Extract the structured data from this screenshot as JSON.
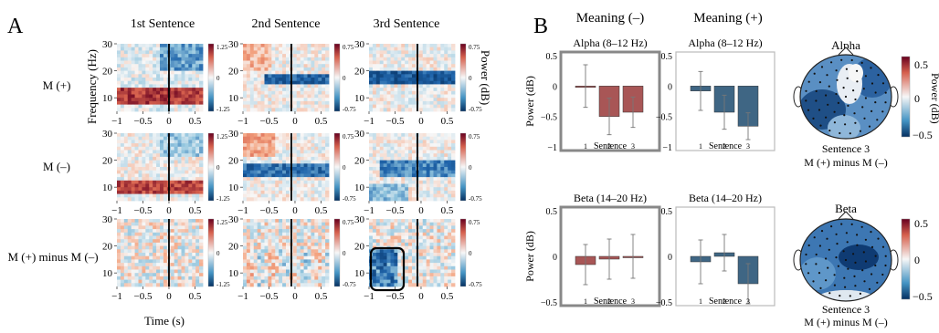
{
  "panel_a": {
    "letter": "A",
    "columns": [
      "1st Sentence",
      "2nd Sentence",
      "3rd Sentence"
    ],
    "rows": [
      "M (+)",
      "M (–)",
      "M (+) minus M (–)"
    ],
    "ylabel": "Frequency (Hz)",
    "xlabel": "Time (s)",
    "colorbar_label": "Power (dB)",
    "yticks": [
      "30",
      "20",
      "10"
    ],
    "xticks": [
      "−1",
      "−0.5",
      "0",
      "0.5"
    ],
    "colorbars": [
      {
        "max": "1.25",
        "mid": "0",
        "min": "-1.25"
      },
      {
        "max": "0.75",
        "mid": "0",
        "min": "-0.75"
      },
      {
        "max": "0.75",
        "mid": "0",
        "min": "-0.75"
      },
      {
        "max": "1.25",
        "mid": "0",
        "min": "-1.25"
      },
      {
        "max": "0.75",
        "mid": "0",
        "min": "-0.75"
      },
      {
        "max": "0.75",
        "mid": "0",
        "min": "-0.75"
      },
      {
        "max": "1.25",
        "mid": "0",
        "min": "-1.25"
      },
      {
        "max": "0.75",
        "mid": "0",
        "min": "-0.75"
      },
      {
        "max": "0.75",
        "mid": "0",
        "min": "-0.75"
      }
    ],
    "colors": {
      "pos": "#b2182b",
      "mid": "#f7f7f7",
      "neg": "#2166ac"
    }
  },
  "panel_b": {
    "letter": "B",
    "headers": [
      "Meaning (–)",
      "Meaning (+)"
    ],
    "topo_titles": [
      "Alpha",
      "Beta"
    ],
    "topo_caption_1": "Sentence 3",
    "topo_caption_2": "M (+) minus M (–)",
    "topo_colorbar": {
      "max": "0.5",
      "mid": "0",
      "min": "−0.5",
      "label": "Power (dB)"
    },
    "colors": {
      "red_bar": "#a85656",
      "blue_bar": "#3f6684",
      "frame": "#888888"
    }
  },
  "chart_data": [
    {
      "type": "bar",
      "title": "Alpha (8–12 Hz)",
      "group": "Meaning (–)",
      "categories": [
        "1",
        "2",
        "3"
      ],
      "values": [
        0.0,
        -0.5,
        -0.43
      ],
      "errors": [
        0.35,
        0.3,
        0.25
      ],
      "xlabel": "Sentence",
      "ylabel": "Power (dB)",
      "ylim": [
        -1.0,
        0.5
      ],
      "yticks": [
        "0.5",
        "0",
        "−0.5",
        "−1"
      ]
    },
    {
      "type": "bar",
      "title": "Alpha (8–12 Hz)",
      "group": "Meaning (+)",
      "categories": [
        "1",
        "2",
        "3"
      ],
      "values": [
        -0.08,
        -0.43,
        -0.66
      ],
      "errors": [
        0.32,
        0.28,
        0.22
      ],
      "xlabel": "Sentence",
      "ylim": [
        -1.0,
        0.5
      ],
      "yticks": [
        "0.5",
        "0",
        "−0.5",
        "−1"
      ]
    },
    {
      "type": "bar",
      "title": "Beta (14–20 Hz)",
      "group": "Meaning (–)",
      "categories": [
        "1",
        "2",
        "3"
      ],
      "values": [
        -0.09,
        -0.03,
        0.0
      ],
      "errors": [
        0.22,
        0.22,
        0.24
      ],
      "xlabel": "Sentence",
      "ylabel": "Power (dB)",
      "ylim": [
        -0.5,
        0.5
      ],
      "yticks": [
        "0.5",
        "0",
        "−0.5"
      ]
    },
    {
      "type": "bar",
      "title": "Beta (14–20 Hz)",
      "group": "Meaning (+)",
      "categories": [
        "1",
        "2",
        "3"
      ],
      "values": [
        -0.06,
        0.04,
        -0.3
      ],
      "errors": [
        0.24,
        0.2,
        0.22
      ],
      "xlabel": "Sentence",
      "ylim": [
        -0.5,
        0.5
      ],
      "yticks": [
        "0.5",
        "0",
        "−0.5"
      ]
    }
  ]
}
